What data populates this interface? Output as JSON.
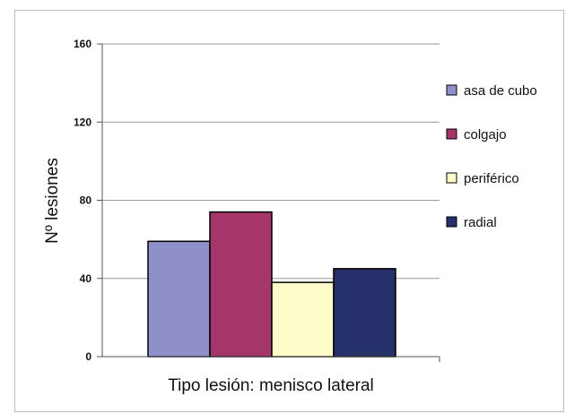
{
  "chart_data": {
    "type": "bar",
    "xlabel": "Tipo lesión: menisco lateral",
    "ylabel": "Nº lesiones",
    "ylim": [
      0,
      160
    ],
    "yticks": [
      "0",
      "40",
      "80",
      "120",
      "160"
    ],
    "grid": true,
    "legend_position": "right",
    "series": [
      {
        "name": "asa de cubo",
        "value": 59,
        "color": "#8f8fca"
      },
      {
        "name": "colgajo",
        "value": 74,
        "color": "#a5366a"
      },
      {
        "name": "periférico",
        "value": 38,
        "color": "#fbfcca"
      },
      {
        "name": "radial",
        "value": 45,
        "color": "#26306b"
      }
    ]
  }
}
